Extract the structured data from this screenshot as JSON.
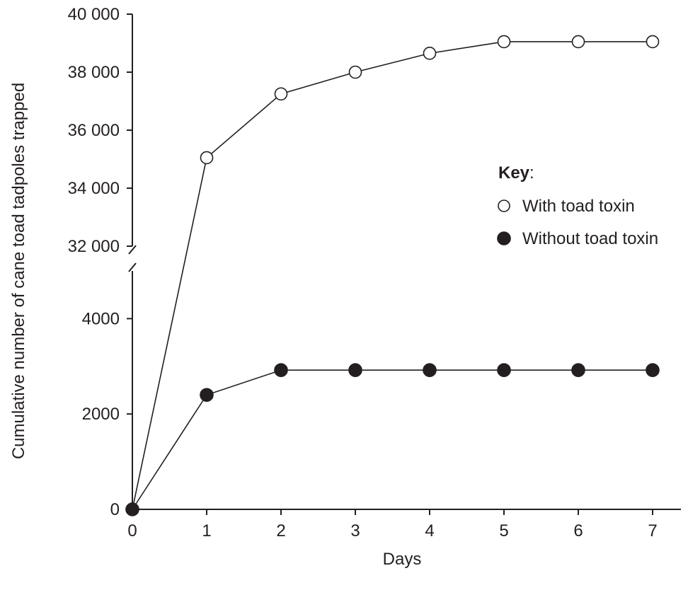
{
  "chart_data": {
    "type": "line",
    "xlabel": "Days",
    "ylabel": "Cumulative number of cane toad tadpoles trapped",
    "x": [
      0,
      1,
      2,
      3,
      4,
      5,
      6,
      7
    ],
    "x_ticks": [
      "0",
      "1",
      "2",
      "3",
      "4",
      "5",
      "6",
      "7"
    ],
    "y_axis_broken": true,
    "y_lower_range": [
      0,
      5000
    ],
    "y_upper_range": [
      32000,
      40000
    ],
    "y_ticks": [
      {
        "value": 0,
        "label": "0"
      },
      {
        "value": 2000,
        "label": "2000"
      },
      {
        "value": 4000,
        "label": "4000"
      },
      {
        "value": 32000,
        "label": "32 000"
      },
      {
        "value": 34000,
        "label": "34 000"
      },
      {
        "value": 36000,
        "label": "36 000"
      },
      {
        "value": 38000,
        "label": "38 000"
      },
      {
        "value": 40000,
        "label": "40 000"
      }
    ],
    "series": [
      {
        "name": "With toad toxin",
        "marker": "open-circle",
        "values": [
          0,
          35050,
          37250,
          38000,
          38650,
          39050,
          39050,
          39050
        ]
      },
      {
        "name": "Without toad toxin",
        "marker": "filled-circle",
        "values": [
          0,
          2400,
          2920,
          2920,
          2920,
          2920,
          2920,
          2920
        ]
      }
    ],
    "legend": {
      "title": "Key",
      "title_suffix": ":",
      "placement": "right"
    },
    "colors": {
      "ink": "#231f20",
      "background": "#ffffff"
    }
  }
}
